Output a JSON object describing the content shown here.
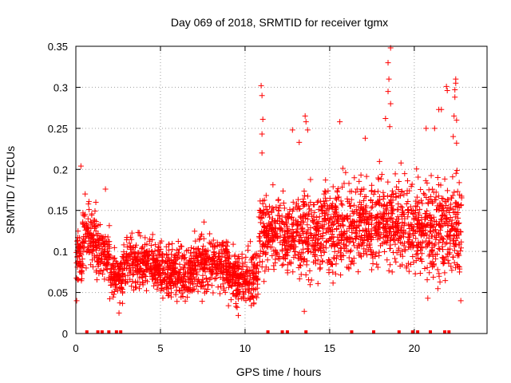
{
  "chart_data": {
    "type": "scatter",
    "title": "Day 069 of 2018, SRMTID for receiver tgmx",
    "xlabel": "GPS time / hours",
    "ylabel": "SRMTID / TECUs",
    "xlim": [
      0,
      24.3
    ],
    "ylim": [
      0,
      0.35
    ],
    "xticks": [
      0,
      5,
      10,
      15,
      20
    ],
    "xtick_labels": [
      "0",
      "5",
      "10",
      "15",
      "20"
    ],
    "yticks": [
      0,
      0.05,
      0.1,
      0.15,
      0.2,
      0.25,
      0.3,
      0.35
    ],
    "ytick_labels": [
      "0",
      "0.05",
      "0.1",
      "0.15",
      "0.2",
      "0.25",
      "0.3",
      "0.35"
    ],
    "grid": true,
    "marker": "+",
    "color": "#ff0000",
    "zero_points_x": [
      0.65,
      1.3,
      1.55,
      1.95,
      2.4,
      2.65,
      11.35,
      12.2,
      12.5,
      13.6,
      16.3,
      17.6,
      19.1,
      19.9,
      20.2,
      20.95,
      21.8,
      22.05
    ],
    "outliers": [
      {
        "x": 0.3,
        "y": 0.204
      },
      {
        "x": 0.55,
        "y": 0.17
      },
      {
        "x": 1.75,
        "y": 0.176
      },
      {
        "x": 10.95,
        "y": 0.302
      },
      {
        "x": 11.0,
        "y": 0.29
      },
      {
        "x": 11.05,
        "y": 0.261
      },
      {
        "x": 11.0,
        "y": 0.243
      },
      {
        "x": 11.0,
        "y": 0.22
      },
      {
        "x": 13.55,
        "y": 0.265
      },
      {
        "x": 13.6,
        "y": 0.258
      },
      {
        "x": 13.7,
        "y": 0.248
      },
      {
        "x": 12.8,
        "y": 0.248
      },
      {
        "x": 13.2,
        "y": 0.233
      },
      {
        "x": 15.6,
        "y": 0.258
      },
      {
        "x": 18.6,
        "y": 0.348
      },
      {
        "x": 18.45,
        "y": 0.33
      },
      {
        "x": 18.5,
        "y": 0.31
      },
      {
        "x": 18.45,
        "y": 0.295
      },
      {
        "x": 18.6,
        "y": 0.28
      },
      {
        "x": 18.3,
        "y": 0.262
      },
      {
        "x": 18.55,
        "y": 0.252
      },
      {
        "x": 17.1,
        "y": 0.238
      },
      {
        "x": 21.45,
        "y": 0.273
      },
      {
        "x": 21.6,
        "y": 0.273
      },
      {
        "x": 21.9,
        "y": 0.301
      },
      {
        "x": 21.95,
        "y": 0.296
      },
      {
        "x": 22.45,
        "y": 0.31
      },
      {
        "x": 22.45,
        "y": 0.305
      },
      {
        "x": 22.4,
        "y": 0.297
      },
      {
        "x": 22.4,
        "y": 0.288
      },
      {
        "x": 22.35,
        "y": 0.265
      },
      {
        "x": 22.5,
        "y": 0.26
      },
      {
        "x": 22.3,
        "y": 0.24
      },
      {
        "x": 22.5,
        "y": 0.232
      },
      {
        "x": 21.2,
        "y": 0.25
      },
      {
        "x": 22.75,
        "y": 0.04
      },
      {
        "x": 0.05,
        "y": 0.04
      },
      {
        "x": 2.55,
        "y": 0.025
      },
      {
        "x": 9.6,
        "y": 0.022
      },
      {
        "x": 13.5,
        "y": 0.027
      },
      {
        "x": 20.8,
        "y": 0.043
      },
      {
        "x": 20.7,
        "y": 0.25
      }
    ],
    "series_profile": [
      {
        "x0": 0.0,
        "x1": 0.4,
        "y_mid": 0.09,
        "spread": 0.035
      },
      {
        "x0": 0.4,
        "x1": 1.2,
        "y_mid": 0.12,
        "spread": 0.04
      },
      {
        "x0": 1.2,
        "x1": 2.0,
        "y_mid": 0.1,
        "spread": 0.035
      },
      {
        "x0": 2.0,
        "x1": 2.8,
        "y_mid": 0.07,
        "spread": 0.03
      },
      {
        "x0": 2.8,
        "x1": 5.0,
        "y_mid": 0.085,
        "spread": 0.035
      },
      {
        "x0": 5.0,
        "x1": 7.0,
        "y_mid": 0.075,
        "spread": 0.035
      },
      {
        "x0": 7.0,
        "x1": 9.0,
        "y_mid": 0.085,
        "spread": 0.04
      },
      {
        "x0": 9.0,
        "x1": 10.8,
        "y_mid": 0.07,
        "spread": 0.035
      },
      {
        "x0": 10.8,
        "x1": 12.5,
        "y_mid": 0.12,
        "spread": 0.05
      },
      {
        "x0": 12.5,
        "x1": 14.5,
        "y_mid": 0.12,
        "spread": 0.055
      },
      {
        "x0": 14.5,
        "x1": 16.5,
        "y_mid": 0.13,
        "spread": 0.06
      },
      {
        "x0": 16.5,
        "x1": 18.5,
        "y_mid": 0.135,
        "spread": 0.06
      },
      {
        "x0": 18.5,
        "x1": 20.5,
        "y_mid": 0.13,
        "spread": 0.06
      },
      {
        "x0": 20.5,
        "x1": 22.0,
        "y_mid": 0.13,
        "spread": 0.065
      },
      {
        "x0": 22.0,
        "x1": 22.8,
        "y_mid": 0.13,
        "spread": 0.07
      }
    ],
    "series_point_density": 260
  }
}
